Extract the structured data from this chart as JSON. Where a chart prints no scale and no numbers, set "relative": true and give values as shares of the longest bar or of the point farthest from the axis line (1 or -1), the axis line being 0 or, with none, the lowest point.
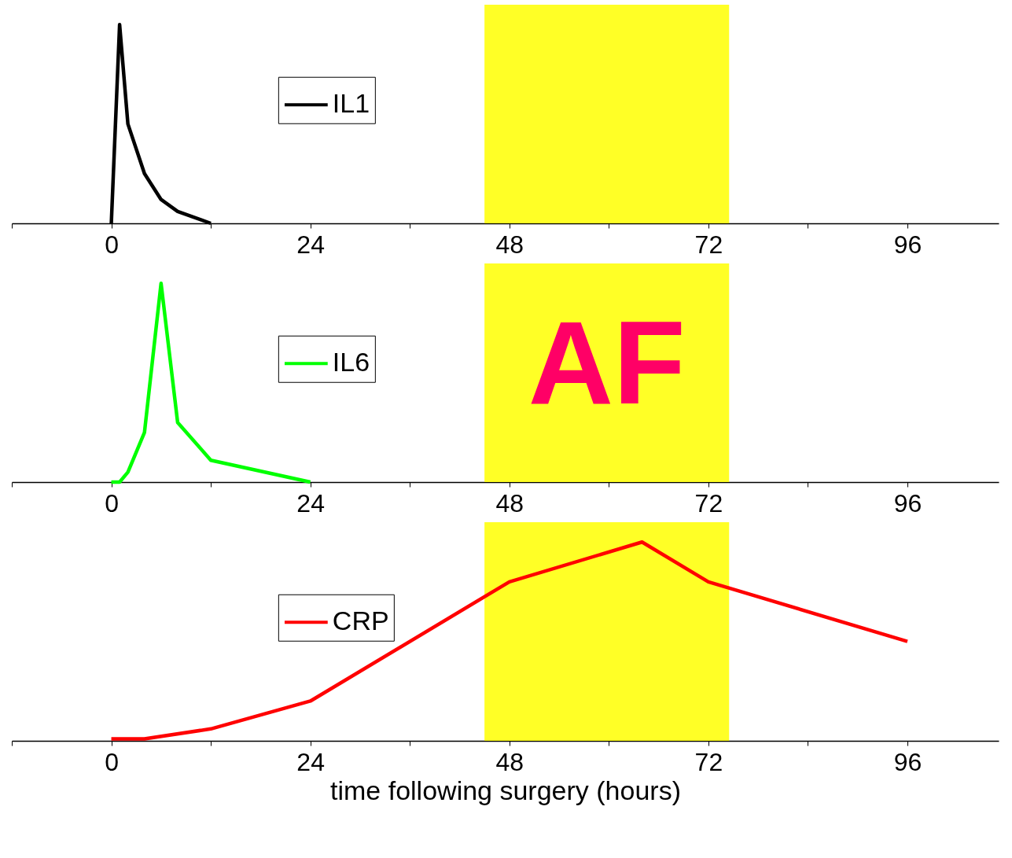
{
  "chart_data": [
    {
      "type": "line",
      "relative": true,
      "x": [
        0,
        1,
        2,
        4,
        6,
        8,
        12
      ],
      "series": [
        {
          "name": "IL1",
          "color": "#000000",
          "values": [
            0,
            1,
            0.5,
            0.25,
            0.12,
            0.06,
            0
          ]
        }
      ],
      "xlim": [
        -12,
        107
      ],
      "xticks": [
        {
          "value": -12,
          "label": null
        },
        0,
        {
          "value": 12,
          "label": null
        },
        24,
        {
          "value": 36,
          "label": null
        },
        48,
        {
          "value": 60,
          "label": null
        },
        72,
        {
          "value": 84,
          "label": null
        },
        96
      ],
      "legend": "top",
      "grid": false,
      "bands": [
        {
          "axis": "x",
          "from": 45,
          "to": 74.5,
          "color": "#ffff00"
        }
      ]
    },
    {
      "type": "line",
      "relative": true,
      "x": [
        0,
        1,
        2,
        4,
        6,
        8,
        12,
        24
      ],
      "series": [
        {
          "name": "IL6",
          "color": "#00ff00",
          "values": [
            0,
            0,
            0.05,
            0.25,
            1,
            0.3,
            0.11,
            0
          ]
        }
      ],
      "xlim": [
        -12,
        107
      ],
      "xticks": [
        {
          "value": -12,
          "label": null
        },
        0,
        {
          "value": 12,
          "label": null
        },
        24,
        {
          "value": 36,
          "label": null
        },
        48,
        {
          "value": 60,
          "label": null
        },
        72,
        {
          "value": 84,
          "label": null
        },
        96
      ],
      "legend": "top",
      "grid": false,
      "bands": [
        {
          "axis": "x",
          "from": 45,
          "to": 74.5,
          "color": "#ffff00",
          "label": "AF"
        }
      ]
    },
    {
      "type": "line",
      "relative": true,
      "x": [
        0,
        4,
        12,
        24,
        48,
        64,
        72,
        96
      ],
      "series": [
        {
          "name": "CRP",
          "color": "#ff0000",
          "values": [
            0.01,
            0.01,
            0.06,
            0.2,
            0.8,
            1,
            0.8,
            0.5
          ]
        }
      ],
      "xlim": [
        -12,
        107
      ],
      "xticks": [
        {
          "value": -12,
          "label": null
        },
        0,
        {
          "value": 12,
          "label": null
        },
        24,
        {
          "value": 36,
          "label": null
        },
        48,
        {
          "value": 60,
          "label": null
        },
        72,
        {
          "value": 84,
          "label": null
        },
        96
      ],
      "xlabel": "time following surgery (hours)",
      "legend": "top",
      "grid": false,
      "bands": [
        {
          "axis": "x",
          "from": 45,
          "to": 74.5,
          "color": "#ffff00"
        }
      ]
    }
  ]
}
